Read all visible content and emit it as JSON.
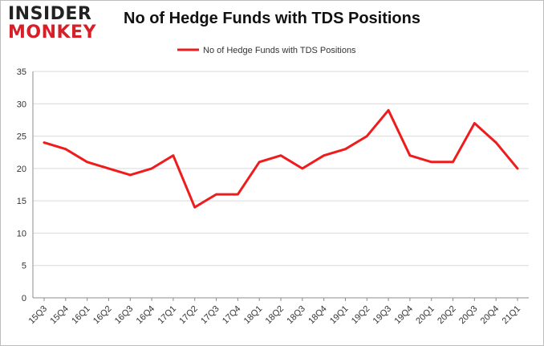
{
  "brand": {
    "line1": "INSIDER",
    "line2": "MONKEY",
    "accent": "#d61f26"
  },
  "chart_data": {
    "type": "line",
    "title": "No of Hedge Funds with TDS Positions",
    "xlabel": "",
    "ylabel": "",
    "ylim": [
      0,
      35
    ],
    "yticks": [
      0,
      5,
      10,
      15,
      20,
      25,
      30,
      35
    ],
    "grid": true,
    "legend_position": "top-center",
    "categories": [
      "15Q3",
      "15Q4",
      "16Q1",
      "16Q2",
      "16Q3",
      "16Q4",
      "17Q1",
      "17Q2",
      "17Q3",
      "17Q4",
      "18Q1",
      "18Q2",
      "18Q3",
      "18Q4",
      "19Q1",
      "19Q2",
      "19Q3",
      "19Q4",
      "20Q1",
      "20Q2",
      "20Q3",
      "20Q4",
      "21Q1"
    ],
    "series": [
      {
        "name": "No of Hedge Funds with TDS Positions",
        "color": "#ee1c1c",
        "values": [
          24,
          23,
          21,
          20,
          19,
          20,
          22,
          14,
          16,
          16,
          21,
          22,
          20,
          22,
          23,
          25,
          29,
          22,
          21,
          21,
          27,
          24,
          20
        ]
      }
    ]
  }
}
